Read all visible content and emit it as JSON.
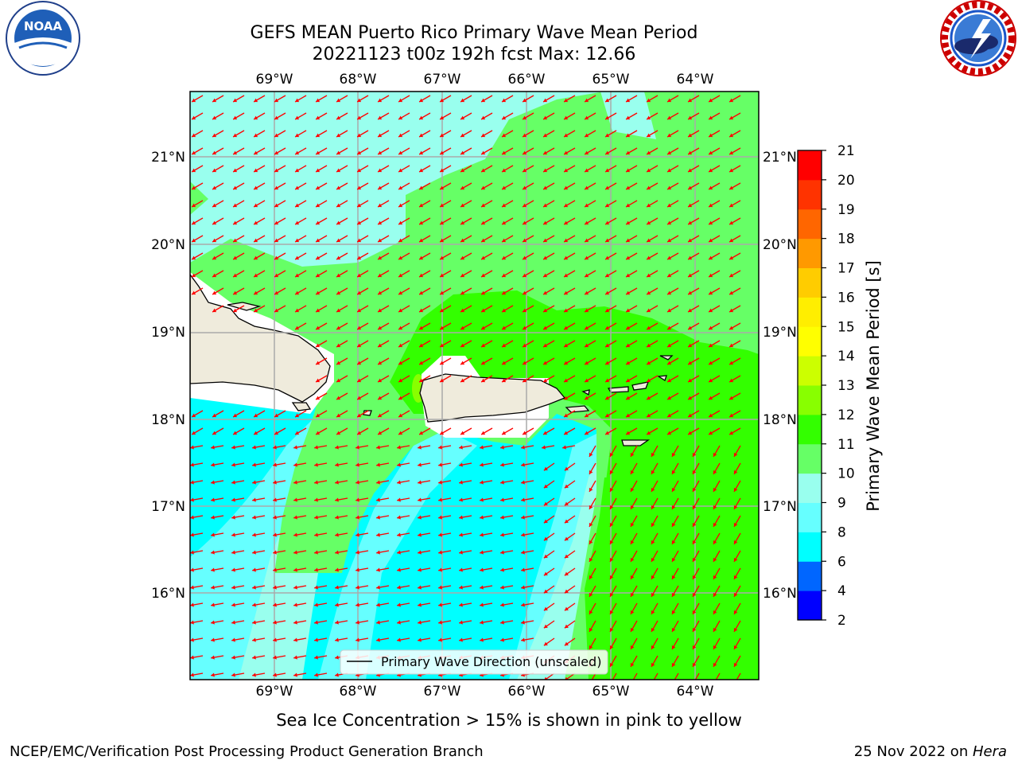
{
  "title": {
    "line1": "GEFS MEAN Puerto Rico Primary Wave Mean Period",
    "line2": "20221123 t00z 192h fcst   Max: 12.66"
  },
  "logos": {
    "left": {
      "name": "noaa-logo",
      "text": "NOAA",
      "ring_text": "NATIONAL OCEANIC AND ATMOSPHERIC ADMINISTRATION · U.S. DEPARTMENT OF COMMERCE"
    },
    "right": {
      "name": "nws-logo",
      "ring_text": "NATIONAL WEATHER SERVICE"
    }
  },
  "map": {
    "lon_labels": [
      "69°W",
      "68°W",
      "67°W",
      "66°W",
      "65°W",
      "64°W"
    ],
    "lat_labels": [
      "21°N",
      "20°N",
      "19°N",
      "18°N",
      "17°N",
      "16°N"
    ],
    "legend_label": "Primary Wave Direction (unscaled)",
    "arrow_color": "#ff0000",
    "land_color": "#efebdc"
  },
  "colorbar": {
    "label": "Primary Wave Mean Period [s]",
    "levels": [
      2,
      4,
      6,
      8,
      9,
      10,
      11,
      12,
      13,
      14,
      15,
      16,
      17,
      18,
      19,
      20,
      21
    ],
    "colors": [
      "#0000ff",
      "#0066ff",
      "#00ffff",
      "#66ffff",
      "#99ffee",
      "#66ff66",
      "#33ff00",
      "#88ff00",
      "#ccff00",
      "#ffff00",
      "#ffee00",
      "#ffcc00",
      "#ff9900",
      "#ff6600",
      "#ff3300",
      "#ff0000"
    ]
  },
  "note": "Sea Ice Concentration > 15% is shown in pink to yellow",
  "footer": {
    "left": "NCEP/EMC/Verification Post Processing Product Generation Branch",
    "date": "25 Nov 2022 on ",
    "machine": "Hera"
  }
}
